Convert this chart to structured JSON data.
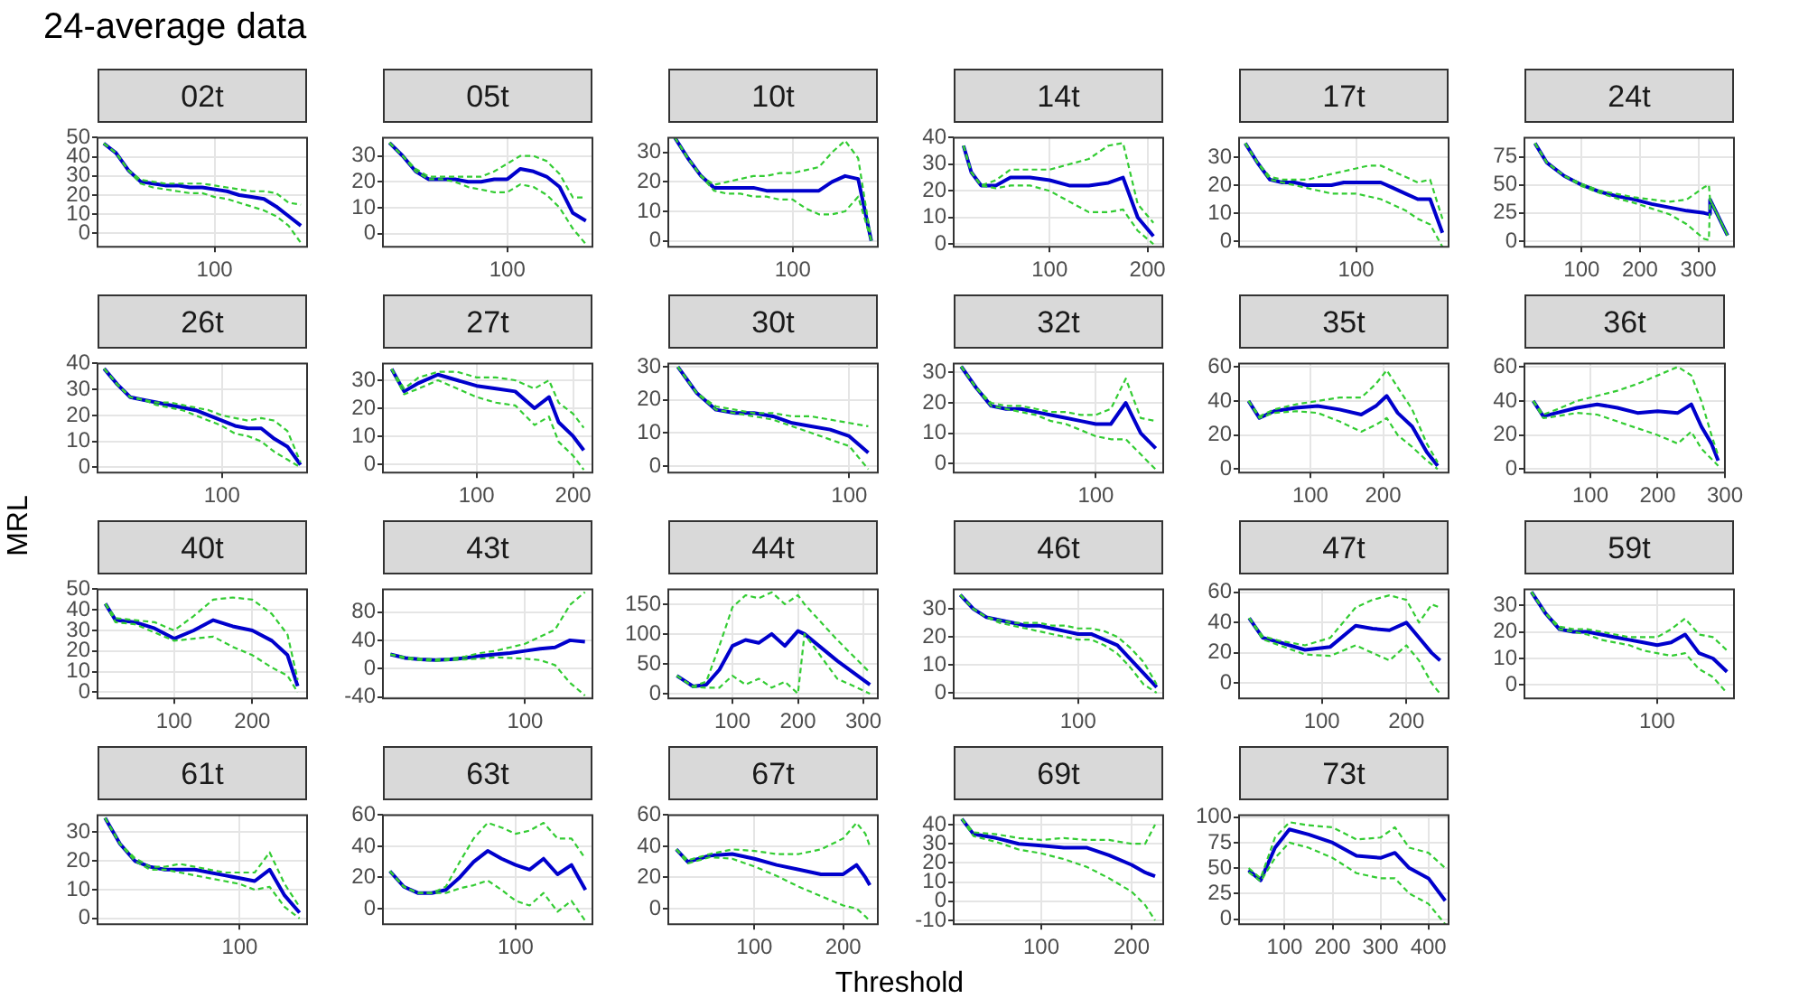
{
  "chart_data": [
    {
      "type": "other",
      "title": "24-average data",
      "xlabel": "Threshold",
      "ylabel": "MRL"
    },
    {
      "type": "line",
      "title": "02t",
      "marker": "none",
      "grid": true,
      "categories": [
        null,
        null,
        null,
        null,
        null,
        null,
        null,
        null,
        null,
        "100",
        null,
        null,
        null,
        null,
        null,
        null,
        null
      ],
      "ylim": [
        -7,
        50
      ],
      "yticks": [
        0,
        10,
        20,
        30,
        40,
        50
      ],
      "series": [
        {
          "color": "#0000cc",
          "line_style": "solid",
          "values": [
            47,
            42,
            33,
            27,
            26,
            25,
            25,
            24,
            24,
            23,
            22,
            20,
            19,
            18,
            14,
            9,
            4
          ]
        },
        {
          "color": "#33cc33",
          "line_style": "dashed",
          "values": [
            47,
            42,
            33,
            28,
            27,
            26,
            26,
            26,
            26,
            25,
            24,
            23,
            22,
            22,
            21,
            16,
            15
          ]
        },
        {
          "color": "#33cc33",
          "line_style": "dashed",
          "values": [
            47,
            42,
            33,
            26,
            24,
            23,
            22,
            21,
            21,
            19,
            18,
            16,
            14,
            12,
            9,
            4,
            -5
          ]
        }
      ]
    },
    {
      "type": "line",
      "title": "05t",
      "marker": "none",
      "grid": true,
      "categories": [
        null,
        null,
        null,
        null,
        null,
        null,
        null,
        null,
        null,
        "100",
        null,
        null,
        null,
        null,
        null,
        null
      ],
      "ylim": [
        -5,
        37
      ],
      "yticks": [
        0,
        10,
        20,
        30
      ],
      "series": [
        {
          "color": "#0000cc",
          "line_style": "solid",
          "values": [
            35,
            30,
            24,
            21,
            21,
            21,
            20,
            20,
            21,
            21,
            25,
            24,
            22,
            18,
            8,
            5
          ]
        },
        {
          "color": "#33cc33",
          "line_style": "dashed",
          "values": [
            35,
            30,
            25,
            22,
            22,
            22,
            22,
            22,
            24,
            27,
            30,
            30,
            28,
            23,
            14,
            14
          ]
        },
        {
          "color": "#33cc33",
          "line_style": "dashed",
          "values": [
            35,
            30,
            24,
            21,
            21,
            20,
            18,
            17,
            16,
            16,
            19,
            18,
            15,
            10,
            2,
            -4
          ]
        }
      ]
    },
    {
      "type": "line",
      "title": "10t",
      "marker": "none",
      "grid": true,
      "categories": [
        null,
        null,
        null,
        null,
        null,
        null,
        null,
        null,
        null,
        "100",
        null,
        null,
        null,
        null,
        null,
        null
      ],
      "ylim": [
        -2,
        35
      ],
      "yticks": [
        0,
        10,
        20,
        30
      ],
      "series": [
        {
          "color": "#0000cc",
          "line_style": "solid",
          "values": [
            35,
            28,
            22,
            18,
            18,
            18,
            18,
            17,
            17,
            17,
            17,
            17,
            20,
            22,
            21,
            0
          ]
        },
        {
          "color": "#33cc33",
          "line_style": "dashed",
          "values": [
            35,
            28,
            22,
            19,
            20,
            21,
            22,
            22,
            23,
            23,
            24,
            25,
            30,
            34,
            28,
            0
          ]
        },
        {
          "color": "#33cc33",
          "line_style": "dashed",
          "values": [
            35,
            28,
            22,
            17,
            16,
            16,
            15,
            15,
            14,
            14,
            11,
            9,
            9,
            10,
            15,
            0
          ]
        }
      ]
    },
    {
      "type": "line",
      "title": "14t",
      "marker": "none",
      "grid": true,
      "xlim": [
        2,
        216
      ],
      "xticks": [
        100,
        200
      ],
      "ylim": [
        -1,
        40
      ],
      "yticks": [
        0,
        10,
        20,
        30,
        40
      ],
      "x": [
        12,
        20,
        30,
        45,
        60,
        80,
        100,
        120,
        140,
        160,
        175,
        190,
        206
      ],
      "series": [
        {
          "color": "#0000cc",
          "line_style": "solid",
          "values": [
            37,
            27,
            22,
            22,
            25,
            25,
            24,
            22,
            22,
            23,
            25,
            10,
            3
          ]
        },
        {
          "color": "#33cc33",
          "line_style": "dashed",
          "values": [
            37,
            27,
            22,
            24,
            28,
            28,
            28,
            30,
            32,
            37,
            38,
            15,
            8
          ]
        },
        {
          "color": "#33cc33",
          "line_style": "dashed",
          "values": [
            37,
            27,
            22,
            21,
            22,
            22,
            20,
            16,
            12,
            12,
            13,
            5,
            0
          ]
        }
      ]
    },
    {
      "type": "line",
      "title": "17t",
      "marker": "none",
      "grid": true,
      "categories": [
        null,
        null,
        null,
        null,
        null,
        null,
        null,
        null,
        null,
        "100",
        null,
        null,
        null,
        null,
        null,
        null,
        null
      ],
      "ylim": [
        -2,
        37
      ],
      "yticks": [
        0,
        10,
        20,
        30
      ],
      "series": [
        {
          "color": "#0000cc",
          "line_style": "solid",
          "values": [
            35,
            28,
            22,
            21,
            21,
            20,
            20,
            20,
            21,
            21,
            21,
            21,
            19,
            17,
            15,
            15,
            3
          ]
        },
        {
          "color": "#33cc33",
          "line_style": "dashed",
          "values": [
            35,
            28,
            23,
            22,
            22,
            22,
            23,
            24,
            25,
            26,
            27,
            27,
            25,
            23,
            21,
            22,
            8
          ]
        },
        {
          "color": "#33cc33",
          "line_style": "dashed",
          "values": [
            35,
            28,
            22,
            21,
            20,
            19,
            18,
            17,
            17,
            17,
            16,
            15,
            13,
            11,
            8,
            6,
            -2
          ]
        }
      ]
    },
    {
      "type": "line",
      "title": "24t",
      "marker": "none",
      "grid": true,
      "xlim": [
        2,
        361
      ],
      "xticks": [
        100,
        200,
        300
      ],
      "ylim": [
        -5,
        92
      ],
      "yticks": [
        0,
        25,
        50,
        75
      ],
      "x": [
        20,
        40,
        70,
        100,
        130,
        160,
        190,
        220,
        250,
        280,
        310,
        318,
        320,
        350
      ],
      "series": [
        {
          "color": "#0000cc",
          "line_style": "solid",
          "values": [
            87,
            70,
            58,
            50,
            44,
            40,
            37,
            33,
            30,
            27,
            25,
            24,
            37,
            5
          ]
        },
        {
          "color": "#33cc33",
          "line_style": "dashed",
          "values": [
            87,
            70,
            58,
            51,
            45,
            42,
            39,
            37,
            35,
            37,
            48,
            50,
            37,
            5
          ]
        },
        {
          "color": "#33cc33",
          "line_style": "dashed",
          "values": [
            87,
            70,
            58,
            49,
            43,
            38,
            34,
            29,
            24,
            15,
            2,
            1,
            37,
            5
          ]
        }
      ]
    },
    {
      "type": "line",
      "title": "26t",
      "marker": "none",
      "grid": true,
      "categories": [
        null,
        null,
        null,
        null,
        null,
        null,
        null,
        null,
        null,
        "100",
        null,
        null,
        null,
        null,
        null,
        null
      ],
      "ylim": [
        -2,
        40
      ],
      "yticks": [
        0,
        10,
        20,
        30,
        40
      ],
      "series": [
        {
          "color": "#0000cc",
          "line_style": "solid",
          "values": [
            38,
            32,
            27,
            26,
            25,
            24,
            23,
            22,
            20,
            18,
            16,
            15,
            15,
            11,
            8,
            1
          ]
        },
        {
          "color": "#33cc33",
          "line_style": "dashed",
          "values": [
            38,
            32,
            27,
            26,
            25,
            25,
            24,
            23,
            22,
            20,
            19,
            18,
            19,
            18,
            14,
            2
          ]
        },
        {
          "color": "#33cc33",
          "line_style": "dashed",
          "values": [
            38,
            32,
            27,
            26,
            24,
            23,
            22,
            20,
            18,
            16,
            13,
            12,
            10,
            6,
            3,
            0
          ]
        }
      ]
    },
    {
      "type": "line",
      "title": "27t",
      "marker": "none",
      "grid": true,
      "xlim": [
        3,
        220
      ],
      "xticks": [
        100,
        200
      ],
      "ylim": [
        -3,
        36
      ],
      "yticks": [
        0,
        10,
        20,
        30
      ],
      "x": [
        12,
        25,
        40,
        60,
        80,
        100,
        120,
        140,
        160,
        175,
        185,
        200,
        211
      ],
      "series": [
        {
          "color": "#0000cc",
          "line_style": "solid",
          "values": [
            34,
            26,
            29,
            32,
            30,
            28,
            27,
            26,
            20,
            24,
            15,
            10,
            5
          ]
        },
        {
          "color": "#33cc33",
          "line_style": "dashed",
          "values": [
            34,
            27,
            31,
            33,
            33,
            31,
            31,
            30,
            27,
            30,
            22,
            18,
            13
          ]
        },
        {
          "color": "#33cc33",
          "line_style": "dashed",
          "values": [
            34,
            25,
            27,
            30,
            27,
            24,
            22,
            21,
            14,
            17,
            8,
            3,
            -2
          ]
        }
      ]
    },
    {
      "type": "line",
      "title": "30t",
      "marker": "none",
      "grid": true,
      "categories": [
        null,
        null,
        null,
        null,
        null,
        null,
        null,
        null,
        null,
        "100",
        null
      ],
      "ylim": [
        -2,
        31
      ],
      "yticks": [
        0,
        10,
        20,
        30
      ],
      "series": [
        {
          "color": "#0000cc",
          "line_style": "solid",
          "values": [
            30,
            22,
            17,
            16,
            16,
            15,
            13,
            12,
            11,
            9,
            4
          ]
        },
        {
          "color": "#33cc33",
          "line_style": "dashed",
          "values": [
            30,
            22,
            18,
            17,
            16,
            16,
            15,
            15,
            14,
            13,
            12
          ]
        },
        {
          "color": "#33cc33",
          "line_style": "dashed",
          "values": [
            30,
            22,
            17,
            16,
            15,
            14,
            12,
            10,
            8,
            6,
            -1
          ]
        }
      ]
    },
    {
      "type": "line",
      "title": "32t",
      "marker": "none",
      "grid": true,
      "categories": [
        null,
        null,
        null,
        null,
        null,
        null,
        null,
        null,
        null,
        "100",
        null,
        null,
        null,
        null
      ],
      "ylim": [
        -3,
        33
      ],
      "yticks": [
        0,
        10,
        20,
        30
      ],
      "series": [
        {
          "color": "#0000cc",
          "line_style": "solid",
          "values": [
            32,
            25,
            19,
            18,
            18,
            17,
            16,
            15,
            14,
            13,
            13,
            20,
            10,
            5
          ]
        },
        {
          "color": "#33cc33",
          "line_style": "dashed",
          "values": [
            32,
            25,
            20,
            19,
            19,
            18,
            17,
            17,
            16,
            16,
            18,
            28,
            15,
            14
          ]
        },
        {
          "color": "#33cc33",
          "line_style": "dashed",
          "values": [
            32,
            25,
            19,
            18,
            17,
            16,
            14,
            13,
            11,
            9,
            8,
            8,
            3,
            -2
          ]
        }
      ]
    },
    {
      "type": "line",
      "title": "35t",
      "marker": "none",
      "grid": true,
      "xlim": [
        2,
        290
      ],
      "xticks": [
        100,
        200
      ],
      "ylim": [
        -2,
        62
      ],
      "yticks": [
        0,
        20,
        40,
        60
      ],
      "x": [
        15,
        30,
        50,
        80,
        110,
        140,
        170,
        190,
        205,
        220,
        240,
        260,
        275
      ],
      "series": [
        {
          "color": "#0000cc",
          "line_style": "solid",
          "values": [
            40,
            30,
            34,
            36,
            37,
            35,
            32,
            37,
            43,
            33,
            25,
            10,
            2
          ]
        },
        {
          "color": "#33cc33",
          "line_style": "dashed",
          "values": [
            40,
            31,
            35,
            38,
            40,
            42,
            42,
            50,
            58,
            48,
            35,
            15,
            4
          ]
        },
        {
          "color": "#33cc33",
          "line_style": "dashed",
          "values": [
            40,
            30,
            33,
            34,
            33,
            28,
            22,
            26,
            30,
            20,
            13,
            5,
            0
          ]
        }
      ]
    },
    {
      "type": "line",
      "title": "36t",
      "marker": "none",
      "grid": true,
      "xlim": [
        2,
        300
      ],
      "xticks": [
        100,
        200,
        300
      ],
      "ylim": [
        -2,
        62
      ],
      "yticks": [
        0,
        20,
        40,
        60
      ],
      "x": [
        15,
        30,
        50,
        80,
        110,
        140,
        170,
        200,
        230,
        250,
        265,
        280,
        290
      ],
      "series": [
        {
          "color": "#0000cc",
          "line_style": "solid",
          "values": [
            40,
            31,
            33,
            36,
            38,
            36,
            33,
            34,
            33,
            38,
            25,
            15,
            5
          ]
        },
        {
          "color": "#33cc33",
          "line_style": "dashed",
          "values": [
            40,
            32,
            35,
            40,
            43,
            46,
            50,
            55,
            60,
            55,
            40,
            20,
            8
          ]
        },
        {
          "color": "#33cc33",
          "line_style": "dashed",
          "values": [
            40,
            30,
            31,
            33,
            32,
            28,
            24,
            20,
            15,
            22,
            12,
            6,
            2
          ]
        }
      ]
    },
    {
      "type": "line",
      "title": "40t",
      "marker": "none",
      "grid": true,
      "xlim": [
        2,
        270
      ],
      "xticks": [
        100,
        200
      ],
      "ylim": [
        -3,
        50
      ],
      "yticks": [
        0,
        10,
        20,
        30,
        40,
        50
      ],
      "x": [
        12,
        25,
        50,
        75,
        100,
        125,
        150,
        175,
        200,
        225,
        245,
        258
      ],
      "series": [
        {
          "color": "#0000cc",
          "line_style": "solid",
          "values": [
            43,
            35,
            34,
            31,
            26,
            30,
            35,
            32,
            30,
            25,
            18,
            3
          ]
        },
        {
          "color": "#33cc33",
          "line_style": "dashed",
          "values": [
            43,
            36,
            35,
            34,
            30,
            37,
            45,
            46,
            45,
            38,
            28,
            6
          ]
        },
        {
          "color": "#33cc33",
          "line_style": "dashed",
          "values": [
            43,
            34,
            33,
            29,
            25,
            26,
            27,
            22,
            18,
            12,
            8,
            0
          ]
        }
      ]
    },
    {
      "type": "line",
      "title": "43t",
      "marker": "none",
      "grid": true,
      "categories": [
        null,
        null,
        null,
        null,
        null,
        null,
        null,
        null,
        null,
        "100",
        null,
        null,
        null,
        null
      ],
      "ylim": [
        -42,
        112
      ],
      "yticks": [
        -40,
        0,
        40,
        80
      ],
      "series": [
        {
          "color": "#0000cc",
          "line_style": "solid",
          "values": [
            20,
            15,
            13,
            12,
            13,
            15,
            18,
            20,
            22,
            25,
            28,
            30,
            40,
            38
          ]
        },
        {
          "color": "#33cc33",
          "line_style": "dashed",
          "values": [
            20,
            16,
            14,
            13,
            14,
            17,
            22,
            25,
            30,
            35,
            45,
            55,
            90,
            108
          ]
        },
        {
          "color": "#33cc33",
          "line_style": "dashed",
          "values": [
            20,
            14,
            12,
            11,
            12,
            13,
            14,
            16,
            15,
            14,
            12,
            5,
            -20,
            -38
          ]
        }
      ]
    },
    {
      "type": "line",
      "title": "44t",
      "marker": "none",
      "grid": true,
      "xlim": [
        2,
        322
      ],
      "xticks": [
        100,
        200,
        300
      ],
      "ylim": [
        -8,
        175
      ],
      "yticks": [
        0,
        50,
        100,
        150
      ],
      "x": [
        15,
        40,
        60,
        80,
        100,
        120,
        140,
        160,
        180,
        200,
        210,
        260,
        310
      ],
      "series": [
        {
          "color": "#0000cc",
          "line_style": "solid",
          "values": [
            30,
            12,
            15,
            40,
            80,
            90,
            85,
            100,
            80,
            105,
            100,
            55,
            15
          ]
        },
        {
          "color": "#33cc33",
          "line_style": "dashed",
          "values": [
            30,
            12,
            20,
            80,
            145,
            165,
            160,
            170,
            150,
            165,
            150,
            90,
            35
          ]
        },
        {
          "color": "#33cc33",
          "line_style": "dashed",
          "values": [
            30,
            11,
            10,
            10,
            30,
            15,
            25,
            10,
            20,
            0,
            100,
            25,
            0
          ]
        }
      ]
    },
    {
      "type": "line",
      "title": "46t",
      "marker": "none",
      "grid": true,
      "categories": [
        null,
        null,
        null,
        null,
        null,
        null,
        null,
        null,
        null,
        "100",
        null,
        null,
        null,
        null,
        null,
        null
      ],
      "ylim": [
        -2,
        37
      ],
      "yticks": [
        0,
        10,
        20,
        30
      ],
      "series": [
        {
          "color": "#0000cc",
          "line_style": "solid",
          "values": [
            35,
            30,
            27,
            26,
            25,
            24,
            24,
            23,
            22,
            21,
            21,
            19,
            17,
            12,
            7,
            2
          ]
        },
        {
          "color": "#33cc33",
          "line_style": "dashed",
          "values": [
            35,
            30,
            27,
            26,
            25,
            25,
            25,
            24,
            24,
            23,
            23,
            22,
            20,
            16,
            11,
            3
          ]
        },
        {
          "color": "#33cc33",
          "line_style": "dashed",
          "values": [
            35,
            30,
            27,
            25,
            24,
            23,
            22,
            21,
            20,
            19,
            19,
            17,
            14,
            9,
            3,
            0
          ]
        }
      ]
    },
    {
      "type": "line",
      "title": "47t",
      "marker": "none",
      "grid": true,
      "xlim": [
        2,
        250
      ],
      "xticks": [
        100,
        200
      ],
      "ylim": [
        -10,
        62
      ],
      "yticks": [
        0,
        20,
        40,
        60
      ],
      "x": [
        14,
        30,
        50,
        80,
        110,
        140,
        160,
        180,
        200,
        215,
        230,
        240
      ],
      "series": [
        {
          "color": "#0000cc",
          "line_style": "solid",
          "values": [
            43,
            30,
            27,
            22,
            24,
            38,
            36,
            35,
            40,
            30,
            20,
            15
          ]
        },
        {
          "color": "#33cc33",
          "line_style": "dashed",
          "values": [
            43,
            31,
            28,
            25,
            30,
            50,
            55,
            58,
            55,
            40,
            52,
            50
          ]
        },
        {
          "color": "#33cc33",
          "line_style": "dashed",
          "values": [
            43,
            29,
            25,
            19,
            18,
            25,
            20,
            15,
            25,
            15,
            0,
            -7
          ]
        }
      ]
    },
    {
      "type": "line",
      "title": "59t",
      "marker": "none",
      "grid": true,
      "categories": [
        null,
        null,
        null,
        null,
        null,
        null,
        null,
        null,
        null,
        "100",
        null,
        null,
        null,
        null,
        null
      ],
      "ylim": [
        -5,
        36
      ],
      "yticks": [
        0,
        10,
        20,
        30
      ],
      "series": [
        {
          "color": "#0000cc",
          "line_style": "solid",
          "values": [
            35,
            27,
            21,
            20,
            20,
            19,
            18,
            17,
            16,
            15,
            16,
            19,
            12,
            10,
            5
          ]
        },
        {
          "color": "#33cc33",
          "line_style": "dashed",
          "values": [
            35,
            27,
            22,
            21,
            21,
            20,
            19,
            18,
            18,
            18,
            21,
            25,
            19,
            18,
            13
          ]
        },
        {
          "color": "#33cc33",
          "line_style": "dashed",
          "values": [
            35,
            27,
            21,
            20,
            19,
            17,
            16,
            15,
            13,
            12,
            11,
            12,
            6,
            3,
            -3
          ]
        }
      ]
    },
    {
      "type": "line",
      "title": "61t",
      "marker": "none",
      "grid": true,
      "categories": [
        null,
        null,
        null,
        null,
        null,
        null,
        null,
        null,
        null,
        "100",
        null,
        null,
        null,
        null
      ],
      "ylim": [
        -2,
        36
      ],
      "yticks": [
        0,
        10,
        20,
        30
      ],
      "series": [
        {
          "color": "#0000cc",
          "line_style": "solid",
          "values": [
            35,
            26,
            20,
            18,
            17,
            17,
            17,
            16,
            15,
            14,
            13,
            17,
            8,
            2
          ]
        },
        {
          "color": "#33cc33",
          "line_style": "dashed",
          "values": [
            35,
            26,
            21,
            18,
            18,
            19,
            18,
            17,
            16,
            16,
            16,
            23,
            12,
            4
          ]
        },
        {
          "color": "#33cc33",
          "line_style": "dashed",
          "values": [
            35,
            26,
            20,
            17,
            17,
            16,
            15,
            14,
            13,
            12,
            10,
            11,
            4,
            0
          ]
        }
      ]
    },
    {
      "type": "line",
      "title": "63t",
      "marker": "none",
      "grid": true,
      "categories": [
        null,
        null,
        null,
        null,
        null,
        null,
        null,
        null,
        null,
        "100",
        null,
        null,
        null,
        null,
        null
      ],
      "ylim": [
        -10,
        60
      ],
      "yticks": [
        0,
        20,
        40,
        60
      ],
      "series": [
        {
          "color": "#0000cc",
          "line_style": "solid",
          "values": [
            24,
            14,
            10,
            10,
            12,
            20,
            30,
            37,
            32,
            28,
            25,
            32,
            22,
            28,
            12
          ]
        },
        {
          "color": "#33cc33",
          "line_style": "dashed",
          "values": [
            24,
            14,
            10,
            10,
            14,
            30,
            45,
            55,
            52,
            48,
            50,
            55,
            45,
            45,
            32
          ]
        },
        {
          "color": "#33cc33",
          "line_style": "dashed",
          "values": [
            24,
            14,
            10,
            10,
            10,
            13,
            15,
            18,
            12,
            5,
            2,
            10,
            -2,
            5,
            -8
          ]
        }
      ]
    },
    {
      "type": "line",
      "title": "67t",
      "marker": "none",
      "grid": true,
      "xlim": [
        3,
        239
      ],
      "xticks": [
        100,
        200
      ],
      "ylim": [
        -10,
        60
      ],
      "yticks": [
        0,
        20,
        40,
        60
      ],
      "x": [
        12,
        25,
        50,
        75,
        100,
        125,
        150,
        175,
        200,
        215,
        225,
        230
      ],
      "series": [
        {
          "color": "#0000cc",
          "line_style": "solid",
          "values": [
            38,
            30,
            34,
            35,
            32,
            28,
            25,
            22,
            22,
            28,
            20,
            15
          ]
        },
        {
          "color": "#33cc33",
          "line_style": "dashed",
          "values": [
            38,
            31,
            35,
            38,
            37,
            35,
            35,
            38,
            45,
            55,
            48,
            40
          ]
        },
        {
          "color": "#33cc33",
          "line_style": "dashed",
          "values": [
            38,
            29,
            33,
            32,
            27,
            21,
            14,
            8,
            2,
            0,
            -5,
            -8
          ]
        }
      ]
    },
    {
      "type": "line",
      "title": "69t",
      "marker": "none",
      "grid": true,
      "xlim": [
        3,
        235
      ],
      "xticks": [
        100,
        200
      ],
      "ylim": [
        -12,
        45
      ],
      "yticks": [
        -10,
        0,
        10,
        20,
        30,
        40
      ],
      "x": [
        12,
        25,
        50,
        75,
        100,
        125,
        150,
        175,
        200,
        215,
        226
      ],
      "series": [
        {
          "color": "#0000cc",
          "line_style": "solid",
          "values": [
            43,
            35,
            33,
            30,
            29,
            28,
            28,
            24,
            19,
            15,
            13
          ]
        },
        {
          "color": "#33cc33",
          "line_style": "dashed",
          "values": [
            43,
            36,
            35,
            33,
            32,
            33,
            32,
            32,
            30,
            30,
            40
          ]
        },
        {
          "color": "#33cc33",
          "line_style": "dashed",
          "values": [
            43,
            34,
            31,
            27,
            25,
            22,
            18,
            12,
            5,
            -2,
            -10
          ]
        }
      ]
    },
    {
      "type": "line",
      "title": "73t",
      "marker": "none",
      "grid": true,
      "xlim": [
        5,
        442
      ],
      "xticks": [
        100,
        200,
        300,
        400
      ],
      "ylim": [
        -5,
        102
      ],
      "yticks": [
        0,
        25,
        50,
        75,
        100
      ],
      "x": [
        25,
        50,
        80,
        110,
        150,
        200,
        250,
        300,
        330,
        360,
        400,
        435
      ],
      "series": [
        {
          "color": "#0000cc",
          "line_style": "solid",
          "values": [
            48,
            38,
            70,
            88,
            83,
            75,
            62,
            60,
            65,
            50,
            40,
            18
          ]
        },
        {
          "color": "#33cc33",
          "line_style": "dashed",
          "values": [
            50,
            40,
            80,
            95,
            92,
            90,
            78,
            80,
            90,
            70,
            65,
            50
          ]
        },
        {
          "color": "#33cc33",
          "line_style": "dashed",
          "values": [
            46,
            37,
            60,
            75,
            70,
            60,
            45,
            40,
            40,
            25,
            15,
            -5
          ]
        }
      ]
    }
  ]
}
